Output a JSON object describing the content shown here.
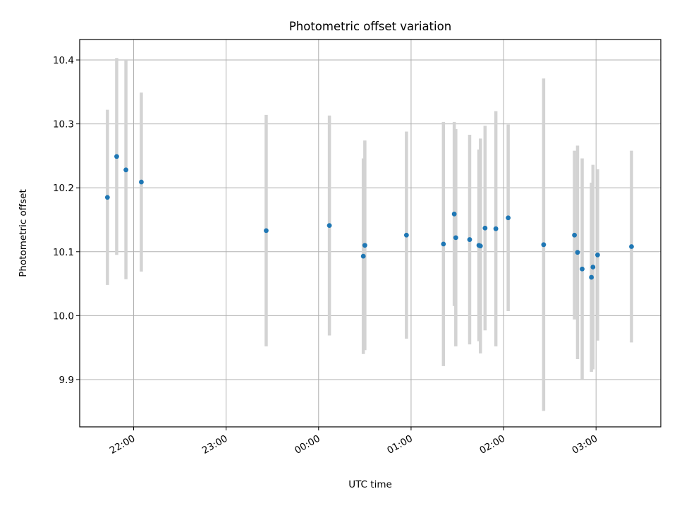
{
  "chart_data": {
    "type": "scatter",
    "title": "Photometric offset variation",
    "xlabel": "UTC time",
    "ylabel": "Photometric offset",
    "x_axis": "time (UTC)",
    "xlim": [
      "21:25",
      "03:42"
    ],
    "ylim": [
      9.826,
      10.432
    ],
    "grid": true,
    "x_ticks": [
      "22:00",
      "23:00",
      "00:00",
      "01:00",
      "02:00",
      "03:00"
    ],
    "y_ticks": [
      "9.9",
      "10.0",
      "10.1",
      "10.2",
      "10.3",
      "10.4"
    ],
    "colors": {
      "point": "#1f77b4",
      "errorbar": "#d3d3d3",
      "grid": "#b0b0b0"
    },
    "points": [
      {
        "t": "21:43",
        "y": 10.185,
        "err": 0.137
      },
      {
        "t": "21:49",
        "y": 10.249,
        "err": 0.154
      },
      {
        "t": "21:55",
        "y": 10.228,
        "err": 0.171
      },
      {
        "t": "22:05",
        "y": 10.209,
        "err": 0.14
      },
      {
        "t": "23:26",
        "y": 10.133,
        "err": 0.181
      },
      {
        "t": "00:07",
        "y": 10.141,
        "err": 0.172
      },
      {
        "t": "00:29",
        "y": 10.093,
        "err": 0.153
      },
      {
        "t": "00:30",
        "y": 10.11,
        "err": 0.164
      },
      {
        "t": "00:57",
        "y": 10.126,
        "err": 0.162
      },
      {
        "t": "01:21",
        "y": 10.112,
        "err": 0.191
      },
      {
        "t": "01:28",
        "y": 10.159,
        "err": 0.144
      },
      {
        "t": "01:29",
        "y": 10.122,
        "err": 0.17
      },
      {
        "t": "01:38",
        "y": 10.119,
        "err": 0.164
      },
      {
        "t": "01:44",
        "y": 10.11,
        "err": 0.15
      },
      {
        "t": "01:45",
        "y": 10.109,
        "err": 0.168
      },
      {
        "t": "01:48",
        "y": 10.137,
        "err": 0.16
      },
      {
        "t": "01:55",
        "y": 10.136,
        "err": 0.184
      },
      {
        "t": "02:03",
        "y": 10.153,
        "err": 0.146
      },
      {
        "t": "02:26",
        "y": 10.111,
        "err": 0.26
      },
      {
        "t": "02:46",
        "y": 10.126,
        "err": 0.132
      },
      {
        "t": "02:48",
        "y": 10.099,
        "err": 0.167
      },
      {
        "t": "02:51",
        "y": 10.073,
        "err": 0.173
      },
      {
        "t": "02:57",
        "y": 10.06,
        "err": 0.148
      },
      {
        "t": "02:58",
        "y": 10.076,
        "err": 0.16
      },
      {
        "t": "03:01",
        "y": 10.095,
        "err": 0.134
      },
      {
        "t": "03:23",
        "y": 10.108,
        "err": 0.15
      }
    ]
  }
}
